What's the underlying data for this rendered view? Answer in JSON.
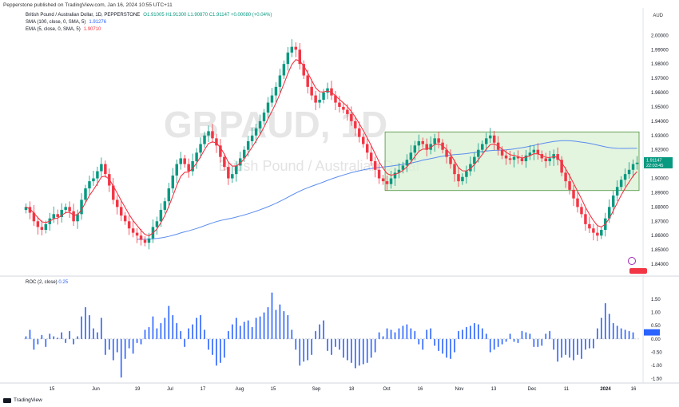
{
  "header": {
    "author_line": "Pepperstone published on TradingView.com, Jan 16, 2024 10:55 UTC+11",
    "currency": "AUD"
  },
  "legend": {
    "symbol": "British Pound / Australian Dollar, 1D, PEPPERSTONE",
    "ohlc": "O1.91005  H1.91300  L1.90870  C1.91147  +0.00080 (+0.04%)",
    "sma": "SMA (100, close, 0, SMA, 5)",
    "sma_value": "1.91276",
    "ema": "EMA (5, close, 0, SMA, 5)",
    "ema_value": "1.90710",
    "rsi": "ROC (2, close)",
    "rsi_value": "0.25"
  },
  "watermark": {
    "ticker": "GBPAUD, 1D",
    "name": "British Pound / Australian Dollar"
  },
  "footer": {
    "brand": "TradingView"
  },
  "colors": {
    "up": "#089981",
    "down": "#f23645",
    "sma": "#5b8def",
    "ema": "#f23645",
    "zone_fill": "#d9f0d4",
    "zone_stroke": "#4a8f3a",
    "roc": "#2962ff"
  },
  "chart_data": [
    {
      "type": "candlestick",
      "title": "British Pound / Australian Dollar, 1D, PEPPERSTONE",
      "ylabel": "AUD",
      "ylim": [
        1.835,
        2.008
      ],
      "y_ticks": [
        "2.00000",
        "1.99000",
        "1.98000",
        "1.97000",
        "1.96000",
        "1.95000",
        "1.94000",
        "1.93000",
        "1.92000",
        "1.91000",
        "1.90000",
        "1.89000",
        "1.88000",
        "1.87000",
        "1.86000",
        "1.85000",
        "1.84000"
      ],
      "x_tick_labels": [
        "15",
        "Jun",
        "19",
        "Jul",
        "17",
        "Aug",
        "15",
        "Sep",
        "18",
        "Oct",
        "16",
        "Nov",
        "13",
        "Dec",
        "11",
        "2024",
        "16"
      ],
      "last_price": "1.91147",
      "last_price_sub": "22:03:45",
      "sma_last": "1.91276",
      "range_box": {
        "from_date": "2023-09-19",
        "to_date": "2024-01-16",
        "low": 1.8915,
        "high": 1.9325
      },
      "close_series": [
        1.88,
        1.876,
        1.87,
        1.866,
        1.864,
        1.868,
        1.872,
        1.875,
        1.873,
        1.878,
        1.88,
        1.877,
        1.87,
        1.875,
        1.885,
        1.893,
        1.898,
        1.9,
        1.905,
        1.91,
        1.903,
        1.895,
        1.885,
        1.88,
        1.874,
        1.87,
        1.865,
        1.862,
        1.86,
        1.857,
        1.855,
        1.858,
        1.866,
        1.87,
        1.878,
        1.884,
        1.893,
        1.902,
        1.91,
        1.914,
        1.91,
        1.905,
        1.912,
        1.918,
        1.924,
        1.93,
        1.933,
        1.928,
        1.923,
        1.915,
        1.908,
        1.9,
        1.903,
        1.909,
        1.914,
        1.92,
        1.926,
        1.93,
        1.935,
        1.94,
        1.946,
        1.953,
        1.958,
        1.964,
        1.972,
        1.98,
        1.988,
        1.992,
        1.99,
        1.98,
        1.972,
        1.964,
        1.958,
        1.953,
        1.955,
        1.96,
        1.963,
        1.958,
        1.953,
        1.95,
        1.948,
        1.945,
        1.94,
        1.935,
        1.929,
        1.924,
        1.918,
        1.912,
        1.906,
        1.9,
        1.898,
        1.896,
        1.9,
        1.904,
        1.906,
        1.909,
        1.913,
        1.918,
        1.923,
        1.926,
        1.924,
        1.92,
        1.924,
        1.928,
        1.925,
        1.92,
        1.915,
        1.91,
        1.903,
        1.898,
        1.901,
        1.905,
        1.91,
        1.915,
        1.92,
        1.924,
        1.928,
        1.93,
        1.925,
        1.92,
        1.916,
        1.914,
        1.913,
        1.915,
        1.914,
        1.912,
        1.916,
        1.918,
        1.92,
        1.917,
        1.914,
        1.912,
        1.914,
        1.917,
        1.913,
        1.904,
        1.898,
        1.892,
        1.886,
        1.88,
        1.875,
        1.868,
        1.865,
        1.862,
        1.86,
        1.864,
        1.872,
        1.88,
        1.888,
        1.894,
        1.899,
        1.903,
        1.906,
        1.91,
        1.911
      ],
      "sma_series_start": 1.838,
      "roc_series": [
        0.1,
        0.35,
        -0.4,
        -0.2,
        0.15,
        -0.3,
        0.2,
        0.1,
        0.05,
        0.25,
        -0.15,
        0.3,
        -0.2,
        0.1,
        0.85,
        1.2,
        0.9,
        0.4,
        0.25,
        0.8,
        -0.6,
        -0.4,
        -0.8,
        -0.5,
        -1.45,
        -0.75,
        -0.35,
        -0.55,
        -0.15,
        -0.2,
        0.35,
        0.45,
        0.85,
        0.4,
        0.6,
        0.8,
        1.25,
        0.9,
        0.6,
        0.3,
        -0.3,
        0.4,
        0.55,
        0.8,
        0.9,
        0.35,
        -0.4,
        -0.6,
        -1.0,
        -0.9,
        -0.7,
        0.3,
        0.55,
        0.8,
        0.5,
        0.65,
        0.7,
        0.45,
        0.8,
        0.85,
        1.0,
        1.2,
        1.75,
        1.1,
        1.3,
        1.05,
        0.9,
        0.35,
        -0.4,
        -1.0,
        -0.85,
        -0.8,
        -0.6,
        0.3,
        0.55,
        0.7,
        -0.45,
        -0.6,
        -0.3,
        -0.4,
        -0.7,
        -0.8,
        -0.9,
        -1.1,
        -1.0,
        -0.95,
        -0.9,
        -0.7,
        -0.5,
        0.25,
        0.1,
        0.4,
        0.35,
        0.25,
        0.4,
        0.5,
        0.55,
        0.4,
        0.3,
        -0.2,
        -0.4,
        0.35,
        0.4,
        -0.25,
        -0.45,
        -0.55,
        -0.7,
        -0.75,
        -0.5,
        0.3,
        0.35,
        0.45,
        0.5,
        0.6,
        0.55,
        0.4,
        0.2,
        -0.5,
        -0.4,
        -0.3,
        -0.2,
        -0.1,
        0.2,
        -0.1,
        -0.15,
        0.3,
        0.25,
        0.2,
        -0.3,
        -0.3,
        -0.25,
        0.2,
        0.3,
        -0.4,
        -0.85,
        -0.7,
        -0.6,
        -0.7,
        -0.8,
        -0.6,
        -0.75,
        -0.4,
        -0.35,
        -0.35,
        0.4,
        0.8,
        1.35,
        0.95,
        0.6,
        0.5,
        0.4,
        0.35,
        0.3,
        0.25
      ],
      "roc_ylim": [
        -1.6,
        1.95
      ],
      "roc_ticks": [
        "1.50",
        "1.00",
        "0.50",
        "0.00",
        "-0.50",
        "-1.00",
        "-1.50"
      ]
    }
  ]
}
